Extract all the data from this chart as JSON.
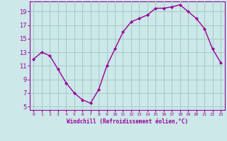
{
  "x": [
    0,
    1,
    2,
    3,
    4,
    5,
    6,
    7,
    8,
    9,
    10,
    11,
    12,
    13,
    14,
    15,
    16,
    17,
    18,
    19,
    20,
    21,
    22,
    23
  ],
  "y": [
    12.0,
    13.0,
    12.5,
    10.5,
    8.5,
    7.0,
    6.0,
    5.5,
    7.5,
    11.0,
    13.5,
    16.0,
    17.5,
    18.0,
    18.5,
    19.5,
    19.5,
    19.7,
    20.0,
    19.0,
    18.0,
    16.5,
    13.5,
    11.5
  ],
  "line_color": "#990099",
  "marker": "D",
  "marker_size": 2,
  "bg_color": "#cce8e8",
  "grid_color": "#aacccc",
  "xlabel": "Windchill (Refroidissement éolien,°C)",
  "xlabel_color": "#990099",
  "ylabel_ticks": [
    5,
    7,
    9,
    11,
    13,
    15,
    17,
    19
  ],
  "xlim": [
    -0.5,
    23.5
  ],
  "ylim": [
    4.5,
    20.5
  ],
  "tick_color": "#990099",
  "axis_color": "#990099",
  "font_color": "#990099",
  "ytick_fontsize": 6,
  "xtick_fontsize": 4.5,
  "xlabel_fontsize": 5.5
}
